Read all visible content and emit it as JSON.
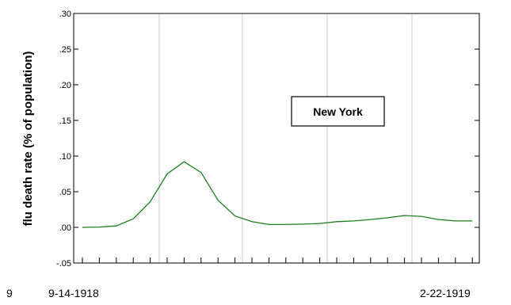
{
  "chart_data": {
    "type": "line",
    "title": "",
    "ylabel": "flu death rate (% of population)",
    "xlabel": "",
    "annotation": "New York",
    "x_labels": [
      "9",
      "9-14-1918",
      "2-22-1919"
    ],
    "y_tick_labels": [
      ".30",
      ".25",
      ".20",
      ".15",
      ".10",
      ".05",
      ".00",
      "-.05"
    ],
    "y_ticks": [
      0.3,
      0.25,
      0.2,
      0.15,
      0.1,
      0.05,
      0.0,
      -0.05
    ],
    "ylim": [
      -0.05,
      0.3
    ],
    "grid": true,
    "series": [
      {
        "color": "#1a7f1a",
        "values": [
          0.0,
          0.0005,
          0.002,
          0.012,
          0.036,
          0.075,
          0.092,
          0.077,
          0.038,
          0.016,
          0.008,
          0.004,
          0.004,
          0.0045,
          0.0055,
          0.008,
          0.009,
          0.011,
          0.0135,
          0.0165,
          0.0155,
          0.011,
          0.009,
          0.009
        ]
      }
    ]
  }
}
